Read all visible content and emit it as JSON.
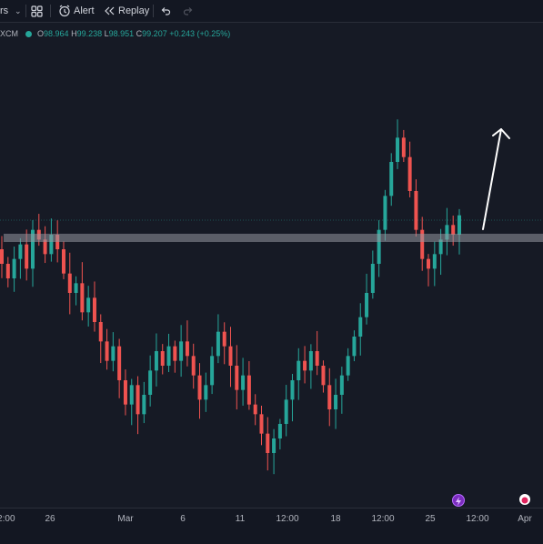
{
  "toolbar": {
    "indicators_label": "rs",
    "alert_label": "Alert",
    "replay_label": "Replay"
  },
  "symbol": {
    "ticker": "XCM",
    "open_label": "O",
    "open": "98.964",
    "high_label": "H",
    "high": "99.238",
    "low_label": "L",
    "low": "98.951",
    "close_label": "C",
    "close": "99.207",
    "change": "+0.243 (+0.25%)",
    "status_color": "#26a69a"
  },
  "colors": {
    "up": "#26a69a",
    "down": "#ef5350",
    "background": "#161a25",
    "zone": "#9598a1",
    "arrow": "#ffffff"
  },
  "x_axis": {
    "ticks": [
      "12:00",
      "26",
      "Mar",
      "6",
      "11",
      "12:00",
      "18",
      "12:00",
      "25",
      "12:00",
      "Apr"
    ]
  },
  "chart_data": {
    "type": "candlestick",
    "description_free": true,
    "y_range": [
      94.0,
      101.5
    ],
    "price_line": 99.1,
    "zone": [
      98.82,
      98.65
    ],
    "series": [
      {
        "values": [
          98.2,
          97.9,
          98.3,
          98.6,
          98.1,
          98.9,
          98.7,
          98.4,
          98.8,
          98.5,
          98.0,
          97.6,
          97.8,
          97.2,
          97.5,
          97.0,
          96.6,
          96.2,
          96.5,
          95.8,
          95.3,
          95.7,
          95.1,
          95.5,
          96.0,
          96.4,
          96.1,
          96.5,
          96.2,
          96.6,
          96.3,
          95.9,
          95.4,
          95.7,
          96.3,
          96.8,
          96.5,
          96.1,
          95.6,
          95.9,
          95.3,
          95.1,
          94.7,
          94.3,
          94.6,
          94.9,
          95.4,
          95.8,
          96.2,
          96.0,
          96.4,
          96.1,
          95.7,
          95.2,
          95.5,
          95.9,
          96.3,
          96.7,
          97.1,
          97.6,
          98.2,
          98.9,
          99.6,
          100.3,
          100.8,
          100.4,
          99.7,
          98.9,
          98.3,
          98.1,
          98.4,
          98.7,
          99.0,
          98.8,
          99.2
        ]
      }
    ]
  }
}
